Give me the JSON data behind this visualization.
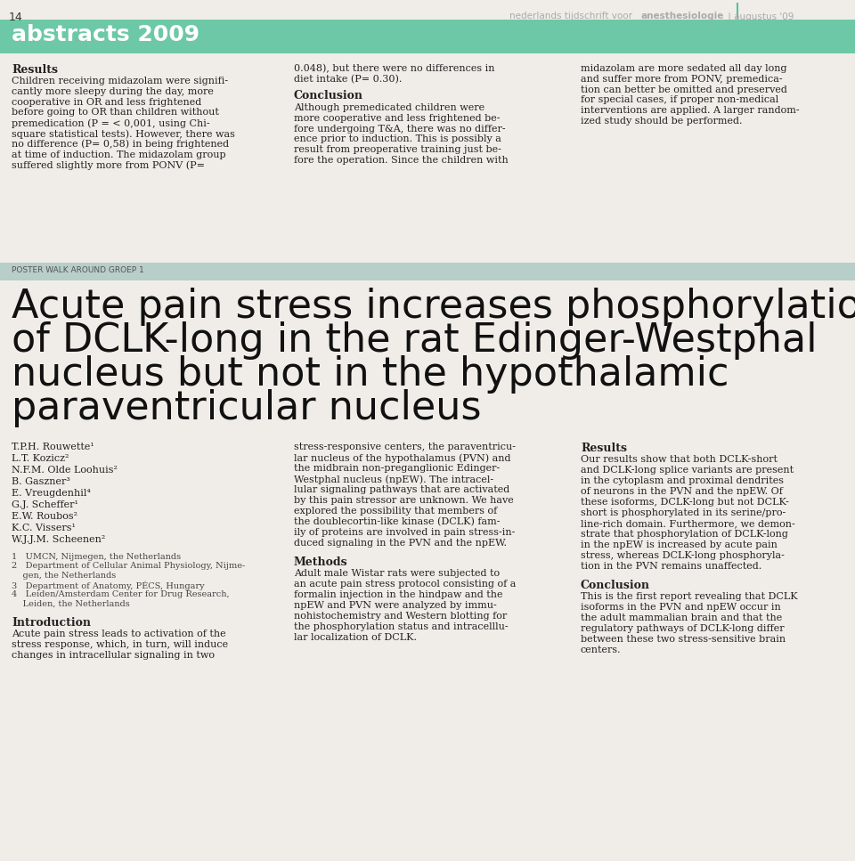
{
  "page_number": "14",
  "header_right_normal": "nederlands tijdschrift voor ",
  "header_right_bold": "anesthesiologie",
  "header_right_suffix": " | augustus '09",
  "header_divider_color": "#5bbf9f",
  "banner_color": "#6dc8a8",
  "banner_text": "abstracts 2009",
  "banner_text_color": "#ffffff",
  "background_color": "#f0ede8",
  "text_color": "#1a1a1a",
  "poster_banner_color": "#b8cec8",
  "poster_banner_text": "POSTER WALK AROUND GROEP 1",
  "poster_title_lines": [
    "Acute pain stress increases phosphorylation",
    "of DCLK-long in the rat Edinger-Westphal",
    "nucleus but not in the hypothalamic",
    "paraventricular nucleus"
  ],
  "col1_results_title": "Results",
  "col1_results_lines": [
    "Children receiving midazolam were signifi-",
    "cantly more sleepy during the day, more",
    "cooperative in OR and less frightened",
    "before going to OR than children without",
    "premedication (P = < 0,001, using Chi-",
    "square statistical tests). However, there was",
    "no difference (P= 0,58) in being frightened",
    "at time of induction. The midazolam group",
    "suffered slightly more from PONV (P="
  ],
  "col2_top_lines": [
    "0.048), but there were no differences in",
    "diet intake (P= 0.30)."
  ],
  "col2_conclusion_title": "Conclusion",
  "col2_conclusion_lines": [
    "Although premedicated children were",
    "more cooperative and less frightened be-",
    "fore undergoing T&A, there was no differ-",
    "ence prior to induction. This is possibly a",
    "result from preoperative training just be-",
    "fore the operation. Since the children with"
  ],
  "col3_top_lines": [
    "midazolam are more sedated all day long",
    "and suffer more from PONV, premedica-",
    "tion can better be omitted and preserved",
    "for special cases, if proper non-medical",
    "interventions are applied. A larger random-",
    "ized study should be performed."
  ],
  "authors": [
    "T.P.H. Rouwette¹",
    "L.T. Kozicz²",
    "N.F.M. Olde Loohuis²",
    "B. Gaszner³",
    "E. Vreugdenhil⁴",
    "G.J. Scheffer¹",
    "E.W. Roubos²",
    "K.C. Vissers¹",
    "W.J.J.M. Scheenen²"
  ],
  "affiliations": [
    "1   UMCN, Nijmegen, the Netherlands",
    "2   Department of Cellular Animal Physiology, Nijme-",
    "    gen, the Netherlands",
    "3   Department of Anatomy, PÉCS, Hungary",
    "4   Leiden/Amsterdam Center for Drug Research,",
    "    Leiden, the Netherlands"
  ],
  "intro_title": "Introduction",
  "intro_lines": [
    "Acute pain stress leads to activation of the",
    "stress response, which, in turn, will induce",
    "changes in intracellular signaling in two"
  ],
  "col2b_lines": [
    "stress-responsive centers, the paraventricu-",
    "lar nucleus of the hypothalamus (PVN) and",
    "the midbrain non-preganglionic Edinger-",
    "Westphal nucleus (npEW). The intracel-",
    "lular signaling pathways that are activated",
    "by this pain stressor are unknown. We have",
    "explored the possibility that members of",
    "the doublecortin-like kinase (DCLK) fam-",
    "ily of proteins are involved in pain stress-in-",
    "duced signaling in the PVN and the npEW."
  ],
  "methods_title": "Methods",
  "methods_lines": [
    "Adult male Wistar rats were subjected to",
    "an acute pain stress protocol consisting of a",
    "formalin injection in the hindpaw and the",
    "npEW and PVN were analyzed by immu-",
    "nohistochemistry and Western blotting for",
    "the phosphorylation status and intracelllu-",
    "lar localization of DCLK."
  ],
  "results2_title": "Results",
  "results2_lines": [
    "Our results show that both DCLK-short",
    "and DCLK-long splice variants are present",
    "in the cytoplasm and proximal dendrites",
    "of neurons in the PVN and the npEW. Of",
    "these isoforms, DCLK-long but not DCLK-",
    "short is phosphorylated in its serine/pro-",
    "line-rich domain. Furthermore, we demon-",
    "strate that phosphorylation of DCLK-long",
    "in the npEW is increased by acute pain",
    "stress, whereas DCLK-long phosphoryla-",
    "tion in the PVN remains unaffected."
  ],
  "conclusion2_title": "Conclusion",
  "conclusion2_lines": [
    "This is the first report revealing that DCLK",
    "isoforms in the PVN and npEW occur in",
    "the adult mammalian brain and that the",
    "regulatory pathways of DCLK-long differ",
    "between these two stress-sensitive brain",
    "centers."
  ]
}
